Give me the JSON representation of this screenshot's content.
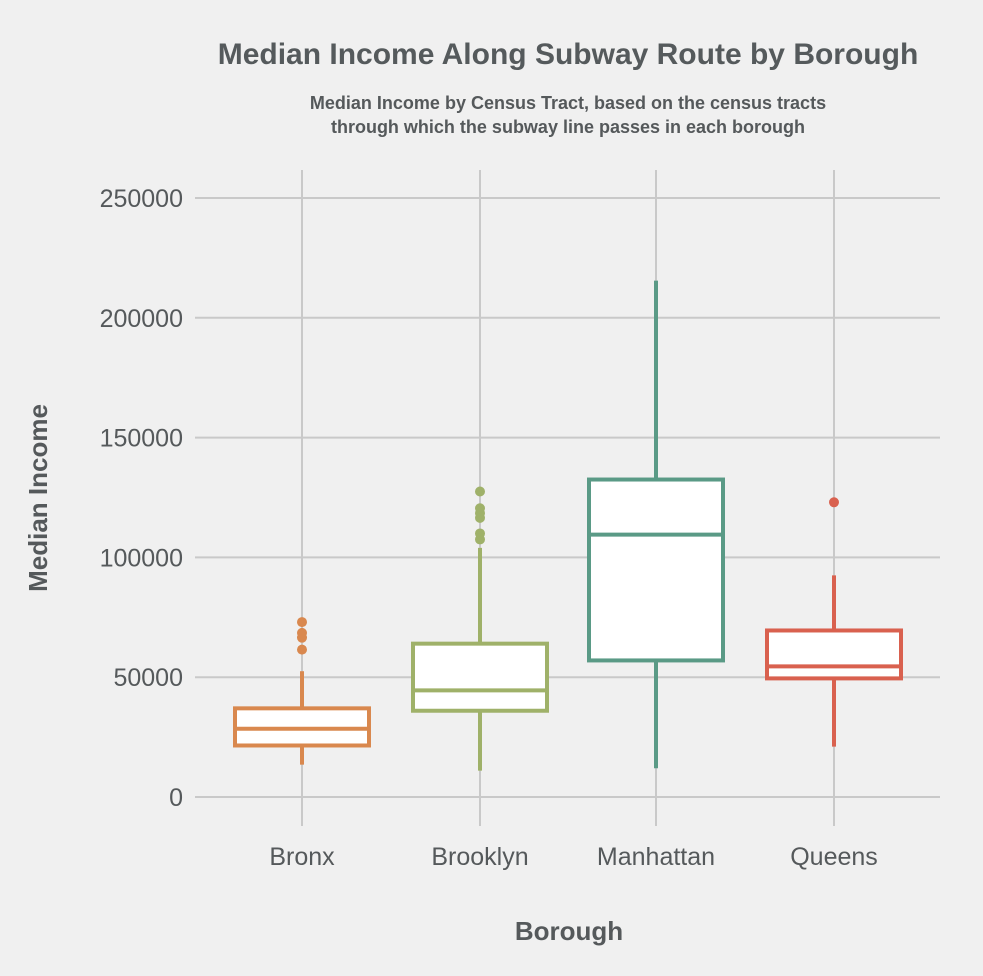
{
  "chart_data": {
    "type": "box",
    "title": "Median Income Along Subway Route by Borough",
    "subtitle_lines": [
      "Median Income by Census Tract, based on the census tracts",
      "through which the subway line passes in each borough"
    ],
    "xlabel": "Borough",
    "ylabel": "Median Income",
    "ylim": [
      0,
      260000
    ],
    "y_ticks": [
      "0",
      "50000",
      "100000",
      "150000",
      "200000",
      "250000"
    ],
    "y_tick_values": [
      0,
      50000,
      100000,
      150000,
      200000,
      250000
    ],
    "grid": true,
    "categories": [
      "Bronx",
      "Brooklyn",
      "Manhattan",
      "Queens"
    ],
    "boxes": [
      {
        "name": "Bronx",
        "color": "#d9884e",
        "whisker_low": 13500,
        "q1": 21500,
        "median": 28500,
        "q3": 37000,
        "whisker_high": 52500,
        "outliers": [
          61500,
          66500,
          68500,
          73000
        ]
      },
      {
        "name": "Brooklyn",
        "color": "#9fb169",
        "whisker_low": 11000,
        "q1": 36000,
        "median": 44500,
        "q3": 64000,
        "whisker_high": 104000,
        "outliers": [
          107500,
          110000,
          116500,
          118500,
          120500,
          127500
        ]
      },
      {
        "name": "Manhattan",
        "color": "#5a9a86",
        "whisker_low": 12000,
        "q1": 57000,
        "median": 109500,
        "q3": 132500,
        "whisker_high": 215500,
        "outliers": []
      },
      {
        "name": "Queens",
        "color": "#d9614f",
        "whisker_low": 21000,
        "q1": 49500,
        "median": 54500,
        "q3": 69500,
        "whisker_high": 92500,
        "outliers": [
          123000
        ]
      }
    ]
  }
}
